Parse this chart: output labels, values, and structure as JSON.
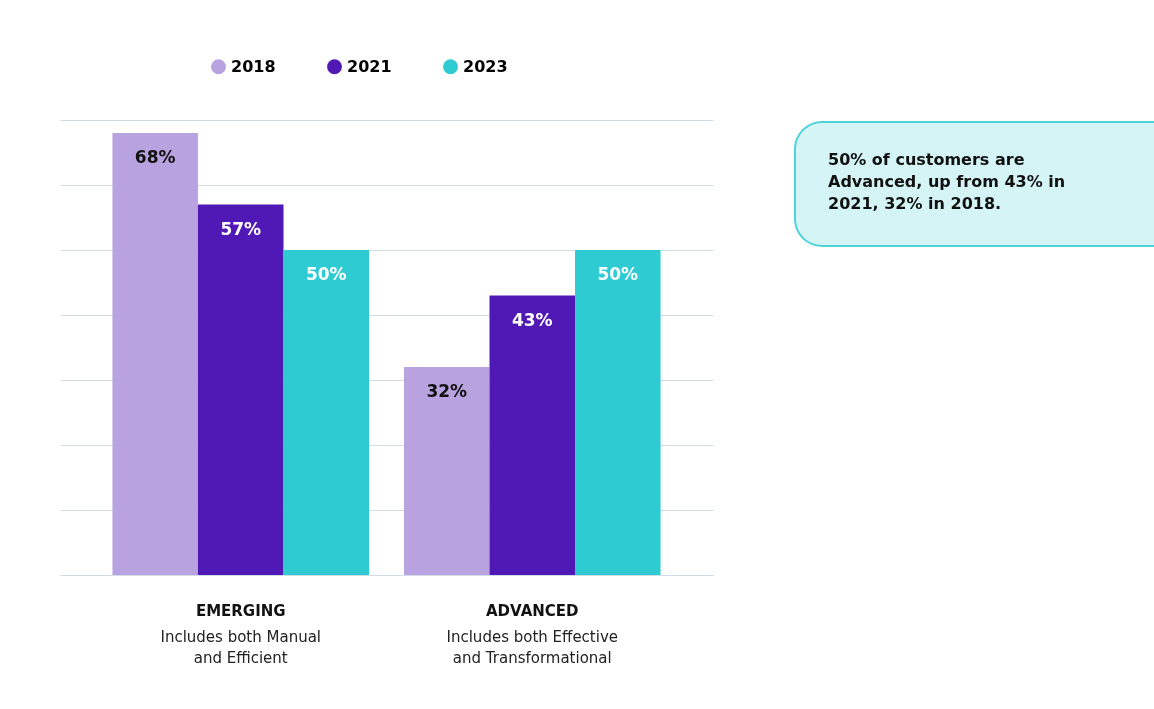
{
  "chart_data": {
    "type": "bar",
    "categories": [
      "EMERGING",
      "ADVANCED"
    ],
    "series": [
      {
        "name": "2018",
        "color": "#b8a3e0",
        "values": [
          68,
          32
        ],
        "value_labels": [
          "68%",
          "32%"
        ]
      },
      {
        "name": "2021",
        "color": "#5019b5",
        "values": [
          57,
          43
        ],
        "value_labels": [
          "57%",
          "43%"
        ]
      },
      {
        "name": "2023",
        "color": "#2ecbd3",
        "values": [
          50,
          50
        ],
        "value_labels": [
          "50%",
          "50%"
        ]
      }
    ],
    "tick_labels": "x",
    "grid": "y",
    "legend": "top",
    "annotations": [
      "Includes both Manual\nand Efficient",
      "Includes both Effective\nand Transformational",
      "50% of customers are Advanced, up from 43% in 2021, 32% in 2018."
    ]
  }
}
